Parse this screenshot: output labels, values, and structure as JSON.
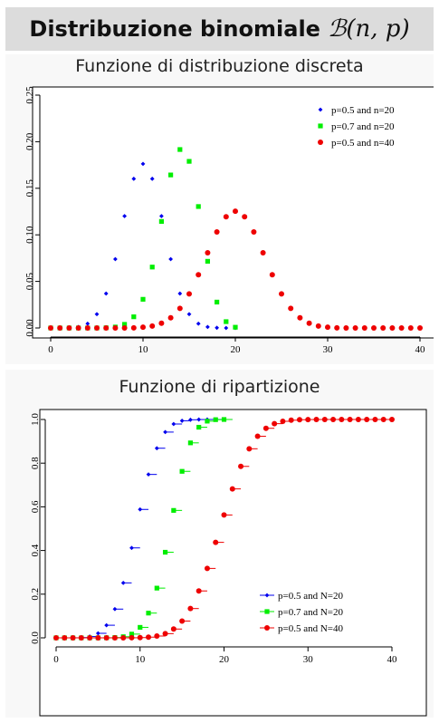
{
  "header": {
    "title_text": "Distribuzione binomiale",
    "title_math": "ℬ(n, p)"
  },
  "charts": {
    "pmf_title": "Funzione di distribuzione discreta",
    "cdf_title": "Funzione di ripartizione"
  },
  "colors": {
    "blue": "#0000ee",
    "green": "#00ee00",
    "red": "#ee0000"
  },
  "chart_data": [
    {
      "type": "scatter",
      "title": "Funzione di distribuzione discreta",
      "xlim": [
        0,
        40
      ],
      "ylim": [
        0,
        0.25
      ],
      "xticks": [
        0,
        10,
        20,
        30,
        40
      ],
      "yticks": [
        "0.00",
        "0.05",
        "0.10",
        "0.15",
        "0.20",
        "0.25"
      ],
      "legend_position": "top-right",
      "series": [
        {
          "name": "p=0.5 and n=20",
          "color": "#0000ee",
          "marker": "diamond",
          "x": [
            0,
            1,
            2,
            3,
            4,
            5,
            6,
            7,
            8,
            9,
            10,
            11,
            12,
            13,
            14,
            15,
            16,
            17,
            18,
            19,
            20
          ],
          "y": [
            0,
            0,
            0.0002,
            0.0011,
            0.0046,
            0.0148,
            0.037,
            0.0739,
            0.1201,
            0.1602,
            0.1762,
            0.1602,
            0.1201,
            0.0739,
            0.037,
            0.0148,
            0.0046,
            0.0011,
            0.0002,
            0,
            0
          ]
        },
        {
          "name": "p=0.7 and n=20",
          "color": "#00ee00",
          "marker": "square",
          "x": [
            0,
            1,
            2,
            3,
            4,
            5,
            6,
            7,
            8,
            9,
            10,
            11,
            12,
            13,
            14,
            15,
            16,
            17,
            18,
            19,
            20
          ],
          "y": [
            0,
            0,
            0,
            0,
            0,
            0,
            0.0002,
            0.001,
            0.0039,
            0.012,
            0.0308,
            0.0654,
            0.1144,
            0.1643,
            0.1916,
            0.1789,
            0.1304,
            0.0716,
            0.0278,
            0.0068,
            0.0008
          ]
        },
        {
          "name": "p=0.5 and n=40",
          "color": "#ee0000",
          "marker": "circle",
          "x": [
            0,
            1,
            2,
            3,
            4,
            5,
            6,
            7,
            8,
            9,
            10,
            11,
            12,
            13,
            14,
            15,
            16,
            17,
            18,
            19,
            20,
            21,
            22,
            23,
            24,
            25,
            26,
            27,
            28,
            29,
            30,
            31,
            32,
            33,
            34,
            35,
            36,
            37,
            38,
            39,
            40
          ],
          "y": [
            0,
            0,
            0,
            0,
            0,
            0,
            0,
            0,
            0,
            0.0001,
            0.0008,
            0.0021,
            0.0051,
            0.011,
            0.021,
            0.0366,
            0.0572,
            0.0807,
            0.1031,
            0.1194,
            0.1254,
            0.1194,
            0.1031,
            0.0807,
            0.0572,
            0.0366,
            0.021,
            0.011,
            0.0051,
            0.0021,
            0.0008,
            0.0001,
            0,
            0,
            0,
            0,
            0,
            0,
            0,
            0,
            0
          ]
        }
      ]
    },
    {
      "type": "scatter",
      "title": "Funzione di ripartizione",
      "xlim": [
        0,
        40
      ],
      "ylim": [
        0,
        1
      ],
      "xticks": [
        0,
        10,
        20,
        30,
        40
      ],
      "yticks": [
        "0.0",
        "0.2",
        "0.4",
        "0.6",
        "0.8",
        "1.0"
      ],
      "legend_position": "bottom-right",
      "series": [
        {
          "name": "p=0.5 and N=20",
          "color": "#0000ee",
          "marker": "diamond",
          "x": [
            0,
            1,
            2,
            3,
            4,
            5,
            6,
            7,
            8,
            9,
            10,
            11,
            12,
            13,
            14,
            15,
            16,
            17,
            18,
            19,
            20
          ],
          "y": [
            0,
            0,
            0.0002,
            0.0013,
            0.0059,
            0.0207,
            0.0577,
            0.1316,
            0.2517,
            0.4119,
            0.5881,
            0.7483,
            0.8684,
            0.9423,
            0.9793,
            0.9941,
            0.9987,
            0.9998,
            1,
            1,
            1
          ]
        },
        {
          "name": "p=0.7 and N=20",
          "color": "#00ee00",
          "marker": "square",
          "x": [
            0,
            1,
            2,
            3,
            4,
            5,
            6,
            7,
            8,
            9,
            10,
            11,
            12,
            13,
            14,
            15,
            16,
            17,
            18,
            19,
            20
          ],
          "y": [
            0,
            0,
            0,
            0,
            0,
            0,
            0.0003,
            0.0013,
            0.0051,
            0.0171,
            0.048,
            0.1133,
            0.2277,
            0.392,
            0.5836,
            0.7625,
            0.8929,
            0.9645,
            0.9924,
            0.9992,
            1
          ]
        },
        {
          "name": "p=0.5 and N=40",
          "color": "#ee0000",
          "marker": "circle",
          "x": [
            0,
            1,
            2,
            3,
            4,
            5,
            6,
            7,
            8,
            9,
            10,
            11,
            12,
            13,
            14,
            15,
            16,
            17,
            18,
            19,
            20,
            21,
            22,
            23,
            24,
            25,
            26,
            27,
            28,
            29,
            30,
            31,
            32,
            33,
            34,
            35,
            36,
            37,
            38,
            39,
            40
          ],
          "y": [
            0,
            0,
            0,
            0,
            0,
            0,
            0,
            0,
            0.0001,
            0.0003,
            0.0011,
            0.0032,
            0.0083,
            0.0192,
            0.0403,
            0.0769,
            0.1341,
            0.2148,
            0.3179,
            0.4373,
            0.5627,
            0.6821,
            0.7852,
            0.8659,
            0.9231,
            0.9597,
            0.9808,
            0.9917,
            0.9968,
            0.9989,
            0.9997,
            0.9999,
            1,
            1,
            1,
            1,
            1,
            1,
            1,
            1,
            1
          ]
        }
      ]
    }
  ]
}
